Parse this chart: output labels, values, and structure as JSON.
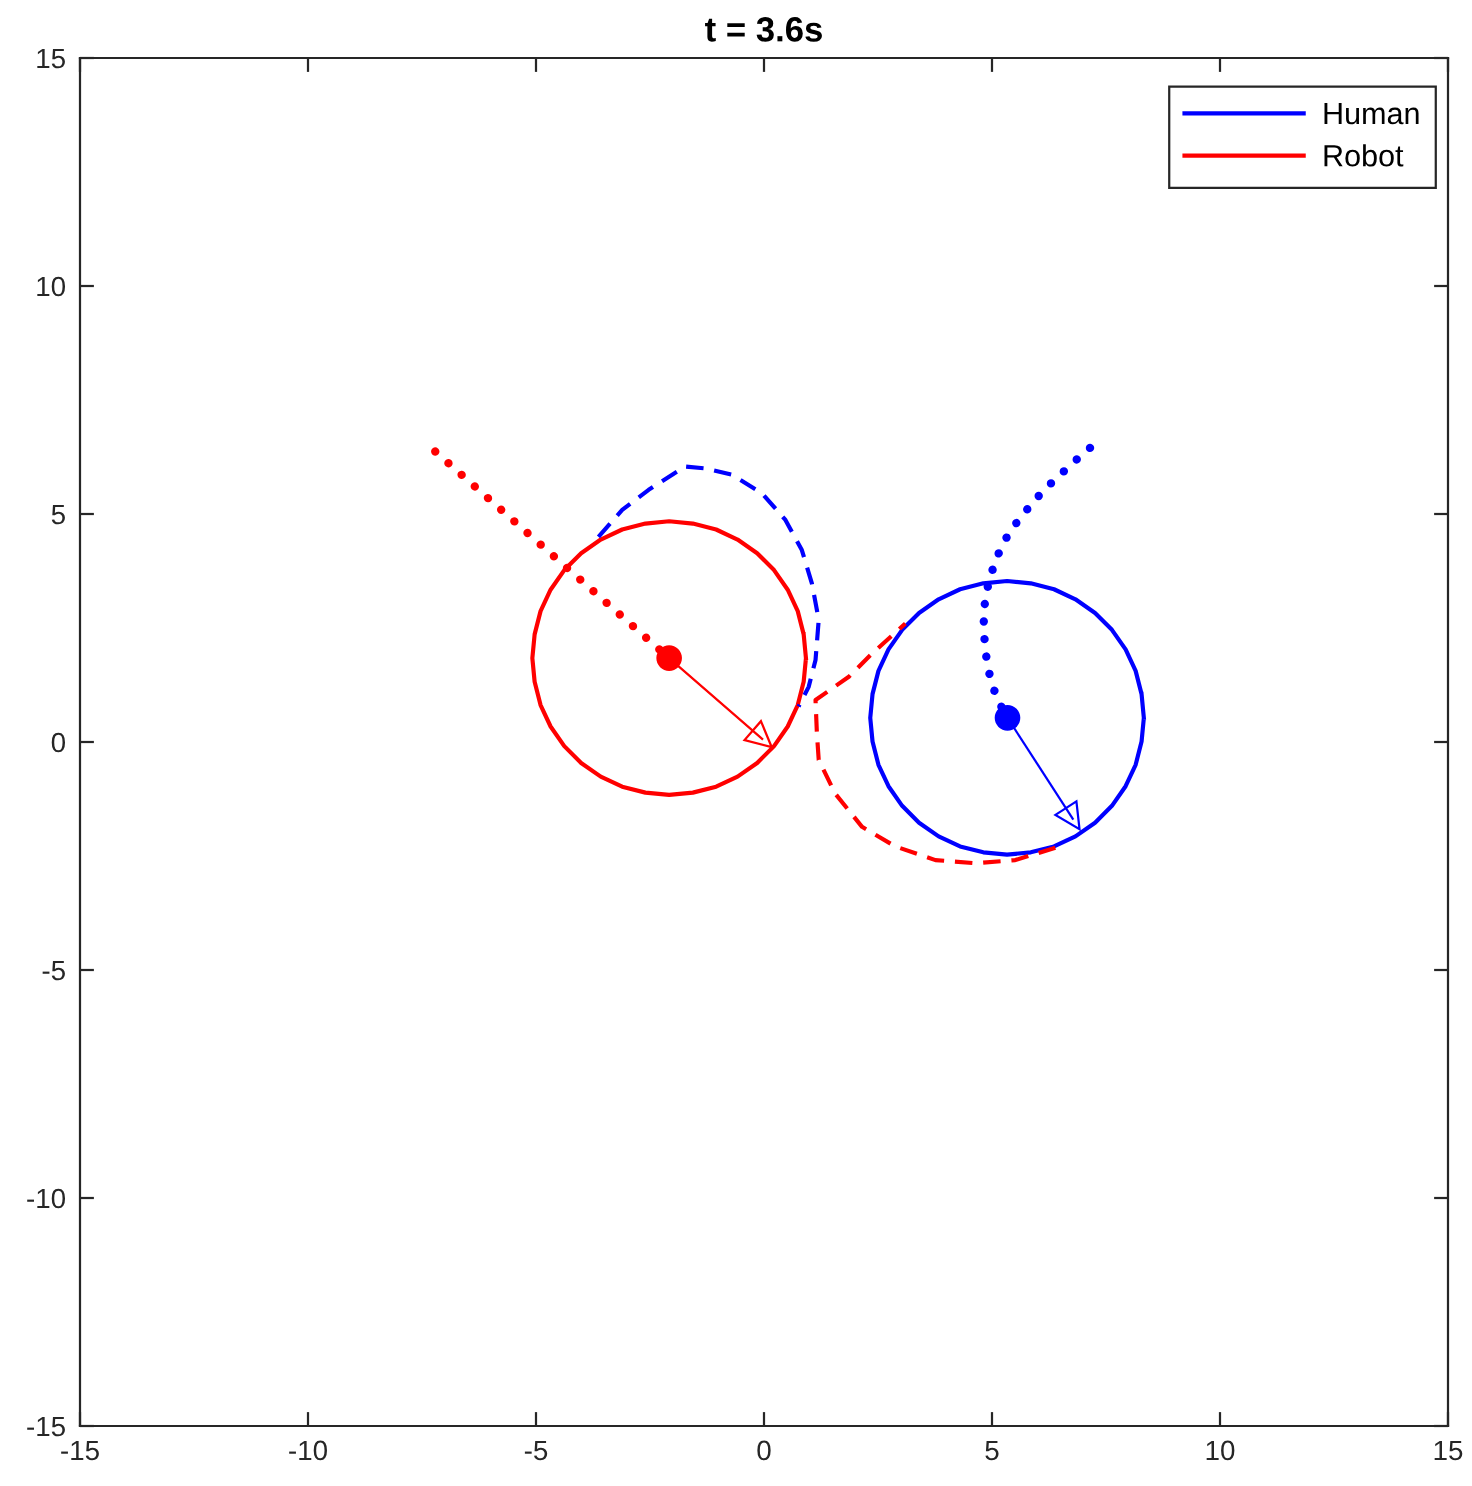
{
  "chart_data": {
    "type": "line",
    "title": "t = 3.6s",
    "xlim": [
      -15,
      15
    ],
    "ylim": [
      -15,
      15
    ],
    "xticks": [
      -15,
      -10,
      -5,
      0,
      5,
      10,
      15
    ],
    "yticks": [
      -15,
      -10,
      -5,
      0,
      5,
      10,
      15
    ],
    "legend": "top right",
    "series": [
      {
        "name": "Human",
        "color": "#0000ff",
        "line_style": "solid",
        "x": [
          8.33,
          8.28,
          8.15,
          7.93,
          7.63,
          7.26,
          6.83,
          6.36,
          5.85,
          5.33,
          4.81,
          4.3,
          3.83,
          3.4,
          3.03,
          2.73,
          2.51,
          2.38,
          2.33,
          2.38,
          2.51,
          2.73,
          3.03,
          3.4,
          3.83,
          4.3,
          4.81,
          5.33,
          5.85,
          6.36,
          6.83,
          7.26,
          7.63,
          7.93,
          8.15,
          8.28,
          8.33,
          8.28
        ],
        "values": [
          0.53,
          1.05,
          1.56,
          2.03,
          2.46,
          2.83,
          3.13,
          3.35,
          3.48,
          3.53,
          3.48,
          3.35,
          3.13,
          2.83,
          2.46,
          2.03,
          1.56,
          1.05,
          0.53,
          0.01,
          -0.5,
          -0.97,
          -1.4,
          -1.77,
          -2.07,
          -2.29,
          -2.42,
          -2.47,
          -2.42,
          -2.29,
          -2.07,
          -1.77,
          -1.4,
          -0.97,
          -0.5,
          0.01,
          0.53,
          1.05
        ]
      },
      {
        "name": "Robot",
        "color": "#ff0000",
        "line_style": "solid",
        "x": [
          0.92,
          0.87,
          0.74,
          0.52,
          0.22,
          -0.15,
          -0.58,
          -1.05,
          -1.56,
          -2.08,
          -2.6,
          -3.11,
          -3.58,
          -4.01,
          -4.38,
          -4.68,
          -4.9,
          -5.03,
          -5.08,
          -5.03,
          -4.9,
          -4.68,
          -4.38,
          -4.01,
          -3.58,
          -3.11,
          -2.6,
          -2.08,
          -1.56,
          -1.05,
          -0.58,
          -0.15,
          0.22,
          0.52,
          0.74,
          0.87,
          0.92,
          0.87
        ],
        "values": [
          1.84,
          2.36,
          2.87,
          3.34,
          3.77,
          4.14,
          4.44,
          4.66,
          4.79,
          4.84,
          4.79,
          4.66,
          4.44,
          4.14,
          3.77,
          3.34,
          2.87,
          2.36,
          1.84,
          1.32,
          0.81,
          0.34,
          -0.09,
          -0.46,
          -0.76,
          -0.98,
          -1.11,
          -1.16,
          -1.11,
          -0.98,
          -0.76,
          -0.46,
          -0.09,
          0.34,
          0.81,
          1.32,
          1.84,
          2.36
        ]
      },
      {
        "color": "#0000ff",
        "line_style": "dashed",
        "x": [
          -3.63,
          -3.11,
          -2.53,
          -1.73,
          -1.29,
          -0.7,
          -0.04,
          0.47,
          0.83,
          1.05,
          1.2,
          1.13,
          0.98,
          0.76
        ],
        "values": [
          4.5,
          5.09,
          5.53,
          6.04,
          6.0,
          5.86,
          5.45,
          4.87,
          4.21,
          3.48,
          2.68,
          1.8,
          1.21,
          0.78
        ]
      },
      {
        "color": "#ff0000",
        "line_style": "dashed",
        "x": [
          6.39,
          5.51,
          4.64,
          3.76,
          2.88,
          2.15,
          1.56,
          1.2,
          1.16,
          1.13,
          1.86,
          2.37,
          2.95,
          3.1
        ],
        "values": [
          -2.32,
          -2.59,
          -2.66,
          -2.59,
          -2.29,
          -1.86,
          -1.13,
          -0.39,
          0.19,
          0.92,
          1.43,
          1.94,
          2.46,
          2.6
        ]
      },
      {
        "color": "#0000ff",
        "line_style": "dotted",
        "x": [
          7.15,
          6.84,
          6.56,
          6.26,
          5.98,
          5.72,
          5.47,
          5.26,
          5.09,
          4.96,
          4.87,
          4.82,
          4.82,
          4.85,
          4.9,
          4.99,
          5.13,
          5.34
        ],
        "values": [
          6.45,
          6.18,
          5.92,
          5.64,
          5.35,
          5.04,
          4.72,
          4.39,
          4.01,
          3.62,
          3.25,
          2.85,
          2.47,
          2.07,
          1.68,
          1.3,
          0.91,
          0.53
        ]
      },
      {
        "color": "#ff0000",
        "line_style": "dotted",
        "x": [
          -7.21,
          -2.08
        ],
        "values": [
          6.37,
          1.84
        ]
      },
      {
        "color": "#0000ff",
        "line_style": "solid",
        "marker": "triangle",
        "x": [
          5.34,
          6.77
        ],
        "values": [
          0.53,
          -1.68
        ]
      },
      {
        "color": "#ff0000",
        "line_style": "solid",
        "marker": "triangle",
        "x": [
          -2.08,
          -0.04
        ],
        "values": [
          1.84,
          0.07
        ]
      },
      {
        "type": "scatter",
        "marker": "circle",
        "color": "#0000ff",
        "x": [
          5.34
        ],
        "values": [
          0.53
        ]
      },
      {
        "type": "scatter",
        "marker": "circle",
        "color": "#ff0000",
        "x": [
          -2.08
        ],
        "values": [
          1.84
        ]
      }
    ]
  }
}
